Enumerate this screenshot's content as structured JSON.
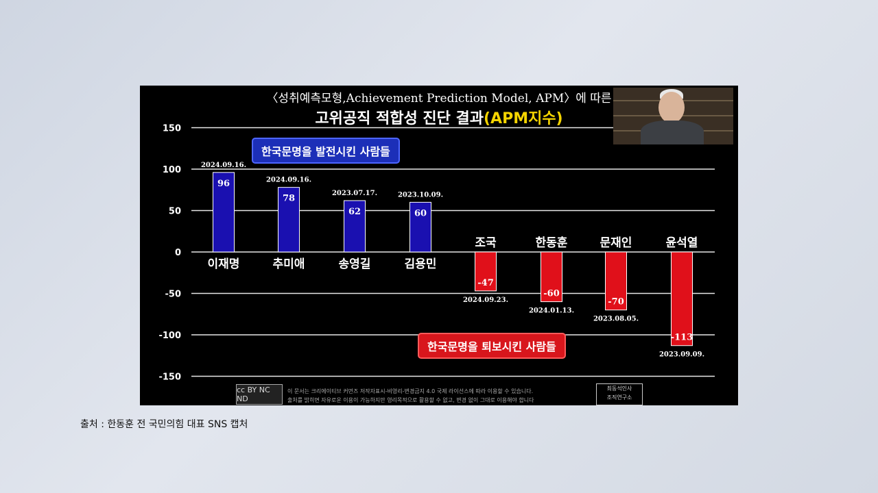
{
  "title_line1": "〈성취예측모형,Achievement Prediction Model, APM〉에 따른",
  "title_line2_main": "고위공직 적합성 진단 결과",
  "title_line2_highlight": "(APM지수)",
  "group_positive_label": "한국문명을 발전시킨 사람들",
  "group_negative_label": "한국문명을 퇴보시킨 사람들",
  "license_badge": "cc BY NC ND",
  "license_text_line1": "이 문서는 크리에이티브 커먼즈 저작자표시-비영리-변경금지 4.0 국제 라이선스에 따라 이용할 수 있습니다.",
  "license_text_line2": "출처를 밝히면 자유로운 이용이 가능하지만 영리목적으로 활용할 수 없고, 변경 없이 그대로 이용해야 합니다",
  "org_line1": "최동석인사",
  "org_line2": "조직연구소",
  "caption": "출처 : 한동훈 전 국민의힘 대표 SNS 캡처",
  "chart_data": {
    "type": "bar",
    "title": "고위공직 적합성 진단 결과(APM지수)",
    "ylim": [
      -150,
      150
    ],
    "yticks": [
      150,
      100,
      50,
      0,
      -50,
      -100,
      -150
    ],
    "grid": true,
    "categories": [
      "이재명",
      "추미애",
      "송영길",
      "김용민",
      "조국",
      "한동훈",
      "문재인",
      "윤석열"
    ],
    "values": [
      96,
      78,
      62,
      60,
      -47,
      -60,
      -70,
      -113
    ],
    "dates": [
      "2024.09.16.",
      "2024.09.16.",
      "2023.07.17.",
      "2023.10.09.",
      "2024.09.23.",
      "2024.01.13.",
      "2023.08.05.",
      "2023.09.09."
    ],
    "colors": {
      "positive": "#1a10b0",
      "negative": "#e0101a"
    }
  }
}
